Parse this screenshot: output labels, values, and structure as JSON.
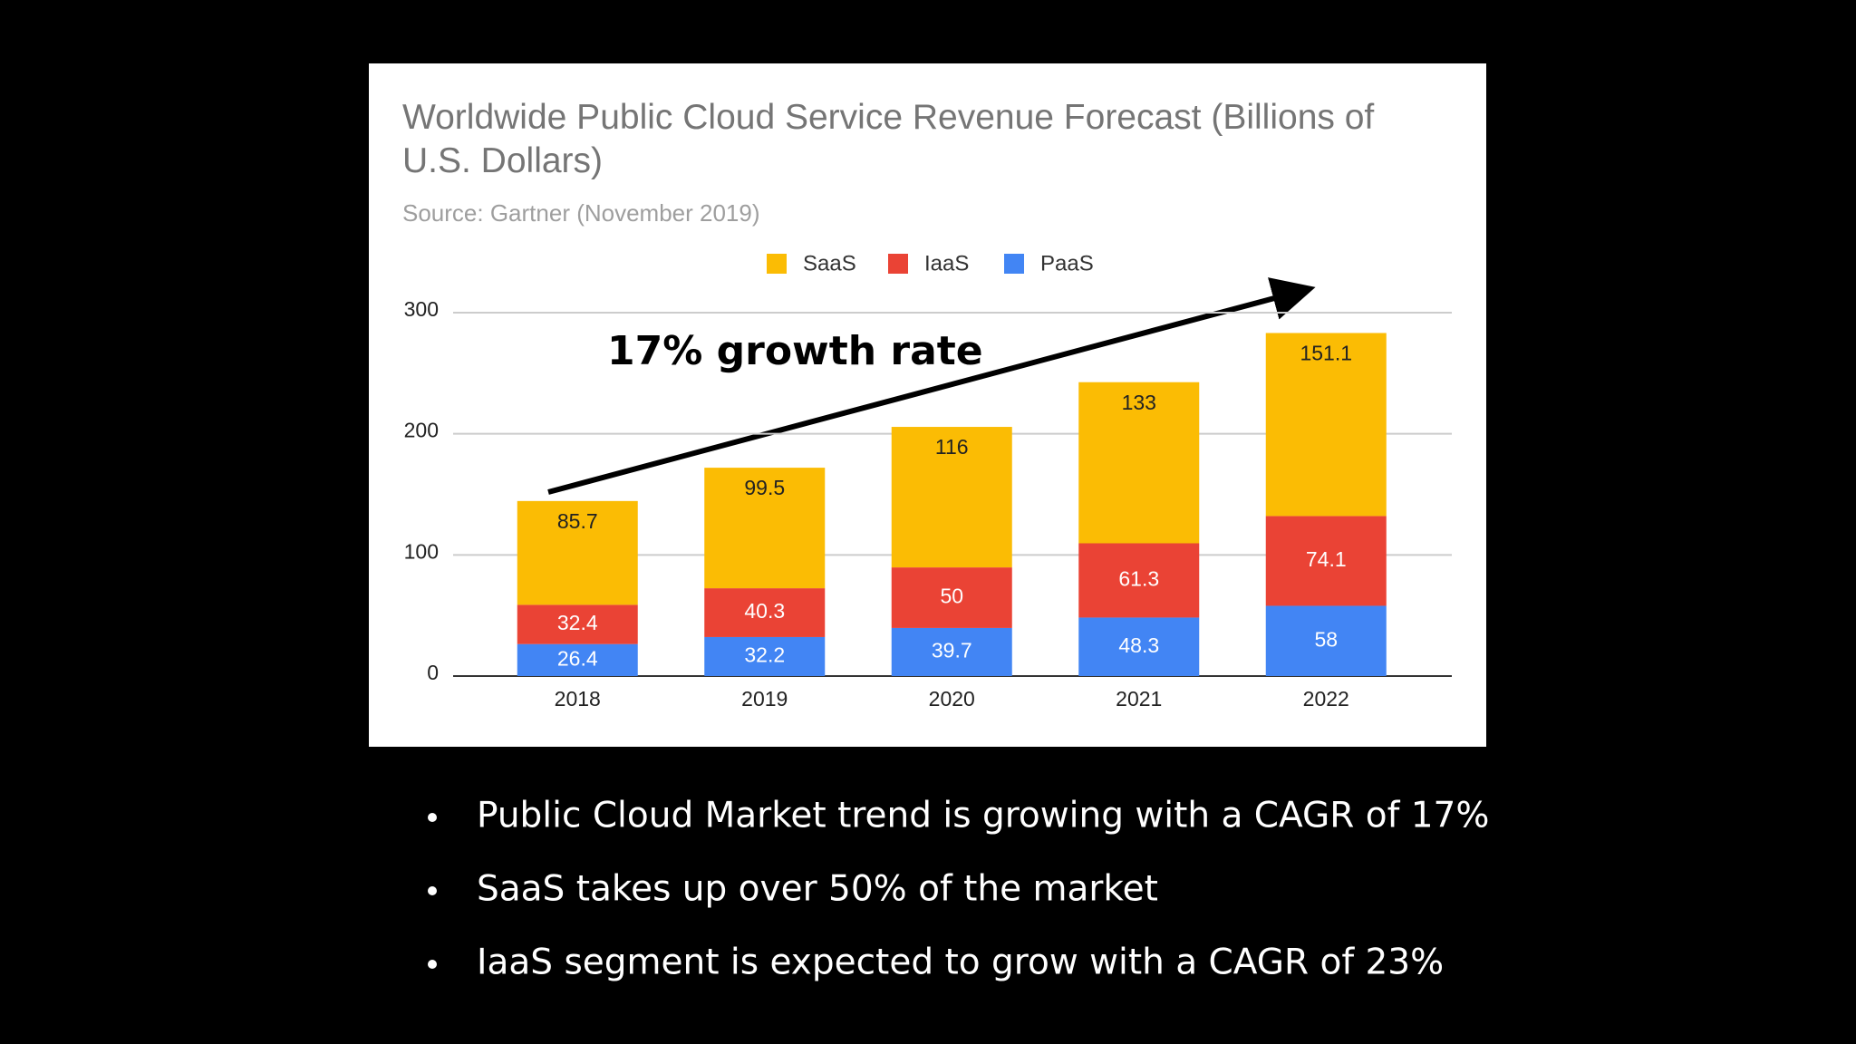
{
  "chart_data": {
    "type": "stacked_bar",
    "title": "Worldwide Public Cloud Service Revenue Forecast (Billions of U.S. Dollars)",
    "subtitle": "Source: Gartner (November 2019)",
    "annotation": "17% growth rate",
    "categories": [
      "2018",
      "2019",
      "2020",
      "2021",
      "2022"
    ],
    "series": [
      {
        "name": "SaaS",
        "color": "#fbbc04",
        "values": [
          85.7,
          99.5,
          116,
          133,
          151.1
        ]
      },
      {
        "name": "IaaS",
        "color": "#ea4335",
        "values": [
          32.4,
          40.3,
          50,
          61.3,
          74.1
        ]
      },
      {
        "name": "PaaS",
        "color": "#4285f4",
        "values": [
          26.4,
          32.2,
          39.7,
          48.3,
          58
        ]
      }
    ],
    "ylim": [
      0,
      300
    ],
    "yticks": [
      0,
      100,
      200,
      300
    ],
    "grid": true,
    "legend": "top"
  },
  "bullets": [
    "Public Cloud Market trend is growing with a CAGR of 17%",
    "SaaS takes up over 50% of the market",
    "IaaS segment is expected to grow with a CAGR of 23%"
  ]
}
